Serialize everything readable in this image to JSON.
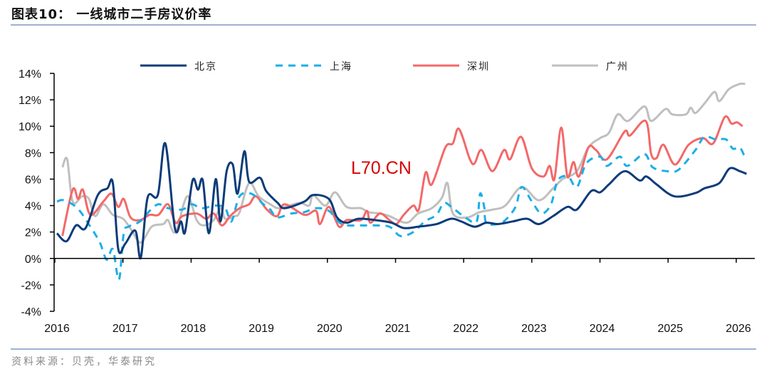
{
  "title": "图表10：  一线城市二手房议价率",
  "source": "资料来源：贝壳，华泰研究",
  "watermark": "L70.CN",
  "chart_data": {
    "type": "line",
    "title": "一线城市二手房议价率",
    "xlabel": "",
    "ylabel": "",
    "xlim": [
      2016,
      2026
    ],
    "ylim": [
      -4,
      14
    ],
    "x_tick_labels": [
      "2016",
      "2017",
      "2018",
      "2019",
      "2020",
      "2021",
      "2022",
      "2023",
      "2024",
      "2025",
      "2026"
    ],
    "x_ticks": [
      2016,
      2017,
      2018,
      2019,
      2020,
      2021,
      2022,
      2023,
      2024,
      2025,
      2026
    ],
    "y_ticks": [
      14,
      12,
      10,
      8,
      6,
      4,
      2,
      0,
      -2,
      -4
    ],
    "y_tick_labels": [
      "14%",
      "12%",
      "10%",
      "8%",
      "6%",
      "4%",
      "2%",
      "0%",
      "-2%",
      "-4%"
    ],
    "grid": false,
    "legend_position": "top",
    "series": [
      {
        "name": "北京",
        "color": "#0d3b7a",
        "dash": false,
        "points": [
          [
            2016.0,
            1.9
          ],
          [
            2016.14,
            1.3
          ],
          [
            2016.28,
            2.5
          ],
          [
            2016.42,
            2.3
          ],
          [
            2016.6,
            4.8
          ],
          [
            2016.74,
            5.3
          ],
          [
            2016.82,
            5.7
          ],
          [
            2016.9,
            0.7
          ],
          [
            2017.0,
            1.1
          ],
          [
            2017.15,
            2.1
          ],
          [
            2017.23,
            0.05
          ],
          [
            2017.33,
            4.6
          ],
          [
            2017.48,
            4.8
          ],
          [
            2017.59,
            8.7
          ],
          [
            2017.73,
            2.3
          ],
          [
            2017.82,
            2.8
          ],
          [
            2017.88,
            2.0
          ],
          [
            2017.99,
            5.9
          ],
          [
            2018.07,
            5.2
          ],
          [
            2018.14,
            5.9
          ],
          [
            2018.23,
            1.9
          ],
          [
            2018.33,
            6.0
          ],
          [
            2018.4,
            2.8
          ],
          [
            2018.49,
            6.6
          ],
          [
            2018.58,
            7.1
          ],
          [
            2018.65,
            4.9
          ],
          [
            2018.75,
            8.1
          ],
          [
            2018.82,
            5.8
          ],
          [
            2018.98,
            6.1
          ],
          [
            2019.07,
            5.1
          ],
          [
            2019.24,
            4.2
          ],
          [
            2019.34,
            3.8
          ],
          [
            2019.63,
            4.3
          ],
          [
            2019.76,
            4.8
          ],
          [
            2019.99,
            4.5
          ],
          [
            2020.11,
            3.1
          ],
          [
            2020.25,
            2.7
          ],
          [
            2020.42,
            3.0
          ],
          [
            2020.67,
            2.9
          ],
          [
            2020.91,
            2.7
          ],
          [
            2021.09,
            2.3
          ],
          [
            2021.3,
            2.4
          ],
          [
            2021.57,
            2.6
          ],
          [
            2021.78,
            3.0
          ],
          [
            2021.93,
            2.8
          ],
          [
            2022.13,
            2.4
          ],
          [
            2022.3,
            2.7
          ],
          [
            2022.47,
            2.6
          ],
          [
            2022.69,
            2.8
          ],
          [
            2022.9,
            3.0
          ],
          [
            2023.07,
            2.6
          ],
          [
            2023.28,
            3.2
          ],
          [
            2023.49,
            3.9
          ],
          [
            2023.63,
            3.7
          ],
          [
            2023.84,
            5.1
          ],
          [
            2023.97,
            5.0
          ],
          [
            2024.1,
            5.6
          ],
          [
            2024.33,
            6.6
          ],
          [
            2024.55,
            5.9
          ],
          [
            2024.65,
            6.2
          ],
          [
            2024.8,
            5.6
          ],
          [
            2025.06,
            4.7
          ],
          [
            2025.37,
            4.95
          ],
          [
            2025.5,
            5.3
          ],
          [
            2025.72,
            5.7
          ],
          [
            2025.87,
            6.8
          ],
          [
            2026.02,
            6.6
          ],
          [
            2026.12,
            6.4
          ]
        ]
      },
      {
        "name": "上海",
        "color": "#1aaee8",
        "dash": true,
        "points": [
          [
            2016.0,
            4.3
          ],
          [
            2016.1,
            4.4
          ],
          [
            2016.3,
            3.8
          ],
          [
            2016.49,
            2.4
          ],
          [
            2016.63,
            1.2
          ],
          [
            2016.73,
            -0.1
          ],
          [
            2016.82,
            0.7
          ],
          [
            2016.91,
            -1.6
          ],
          [
            2016.98,
            1.9
          ],
          [
            2017.05,
            2.4
          ],
          [
            2017.22,
            2.8
          ],
          [
            2017.36,
            3.6
          ],
          [
            2017.49,
            4.1
          ],
          [
            2017.63,
            3.8
          ],
          [
            2017.84,
            3.7
          ],
          [
            2017.98,
            4.1
          ],
          [
            2018.12,
            3.8
          ],
          [
            2018.33,
            4.0
          ],
          [
            2018.47,
            3.8
          ],
          [
            2018.56,
            2.8
          ],
          [
            2018.68,
            4.7
          ],
          [
            2018.85,
            4.9
          ],
          [
            2019.03,
            4.1
          ],
          [
            2019.13,
            3.7
          ],
          [
            2019.23,
            3.1
          ],
          [
            2019.44,
            3.4
          ],
          [
            2019.63,
            3.5
          ],
          [
            2019.8,
            3.8
          ],
          [
            2019.99,
            3.6
          ],
          [
            2020.18,
            2.6
          ],
          [
            2020.46,
            2.5
          ],
          [
            2020.67,
            2.5
          ],
          [
            2020.88,
            2.4
          ],
          [
            2021.04,
            1.7
          ],
          [
            2021.23,
            2.0
          ],
          [
            2021.4,
            2.8
          ],
          [
            2021.57,
            3.3
          ],
          [
            2021.68,
            4.2
          ],
          [
            2021.81,
            3.8
          ],
          [
            2022.02,
            3.0
          ],
          [
            2022.16,
            2.8
          ],
          [
            2022.21,
            4.9
          ],
          [
            2022.27,
            3.9
          ],
          [
            2022.3,
            2.7
          ],
          [
            2022.47,
            2.6
          ],
          [
            2022.58,
            2.9
          ],
          [
            2022.73,
            3.9
          ],
          [
            2022.82,
            5.4
          ],
          [
            2022.97,
            4.3
          ],
          [
            2023.11,
            3.4
          ],
          [
            2023.25,
            4.1
          ],
          [
            2023.35,
            5.9
          ],
          [
            2023.5,
            6.2
          ],
          [
            2023.63,
            5.4
          ],
          [
            2023.77,
            7.2
          ],
          [
            2023.97,
            7.7
          ],
          [
            2024.07,
            7.0
          ],
          [
            2024.26,
            7.7
          ],
          [
            2024.37,
            7.0
          ],
          [
            2024.62,
            7.9
          ],
          [
            2024.74,
            6.9
          ],
          [
            2024.95,
            6.6
          ],
          [
            2025.12,
            6.7
          ],
          [
            2025.37,
            8.2
          ],
          [
            2025.5,
            9.2
          ],
          [
            2025.67,
            9.0
          ],
          [
            2025.82,
            9.0
          ],
          [
            2025.92,
            8.3
          ],
          [
            2026.02,
            8.4
          ],
          [
            2026.1,
            7.6
          ]
        ]
      },
      {
        "name": "深圳",
        "color": "#f46868",
        "dash": false,
        "points": [
          [
            2016.08,
            1.7
          ],
          [
            2016.23,
            5.2
          ],
          [
            2016.31,
            4.5
          ],
          [
            2016.38,
            5.2
          ],
          [
            2016.49,
            3.3
          ],
          [
            2016.68,
            4.3
          ],
          [
            2016.8,
            4.9
          ],
          [
            2016.9,
            3.9
          ],
          [
            2016.98,
            4.5
          ],
          [
            2017.08,
            3.1
          ],
          [
            2017.22,
            2.9
          ],
          [
            2017.36,
            3.3
          ],
          [
            2017.49,
            3.3
          ],
          [
            2017.63,
            4.1
          ],
          [
            2017.74,
            2.7
          ],
          [
            2017.84,
            3.2
          ],
          [
            2018.05,
            3.4
          ],
          [
            2018.19,
            3.0
          ],
          [
            2018.3,
            3.4
          ],
          [
            2018.42,
            2.5
          ],
          [
            2018.54,
            3.2
          ],
          [
            2018.68,
            3.8
          ],
          [
            2018.82,
            4.1
          ],
          [
            2018.92,
            4.7
          ],
          [
            2019.08,
            3.7
          ],
          [
            2019.23,
            3.2
          ],
          [
            2019.34,
            4.1
          ],
          [
            2019.63,
            3.3
          ],
          [
            2019.8,
            3.6
          ],
          [
            2019.86,
            2.6
          ],
          [
            2019.99,
            3.9
          ],
          [
            2020.14,
            2.4
          ],
          [
            2020.25,
            2.9
          ],
          [
            2020.46,
            2.9
          ],
          [
            2020.55,
            3.6
          ],
          [
            2020.6,
            2.7
          ],
          [
            2020.74,
            3.4
          ],
          [
            2020.88,
            2.9
          ],
          [
            2020.98,
            2.6
          ],
          [
            2021.09,
            3.3
          ],
          [
            2021.23,
            4.0
          ],
          [
            2021.31,
            3.7
          ],
          [
            2021.41,
            6.5
          ],
          [
            2021.5,
            5.6
          ],
          [
            2021.7,
            8.4
          ],
          [
            2021.81,
            8.7
          ],
          [
            2021.9,
            9.8
          ],
          [
            2022.06,
            7.5
          ],
          [
            2022.13,
            7.2
          ],
          [
            2022.23,
            8.2
          ],
          [
            2022.39,
            6.6
          ],
          [
            2022.56,
            8.2
          ],
          [
            2022.65,
            7.5
          ],
          [
            2022.81,
            9.2
          ],
          [
            2022.97,
            6.8
          ],
          [
            2023.14,
            6.2
          ],
          [
            2023.23,
            7.0
          ],
          [
            2023.3,
            6.0
          ],
          [
            2023.4,
            9.9
          ],
          [
            2023.49,
            6.2
          ],
          [
            2023.58,
            7.3
          ],
          [
            2023.66,
            6.2
          ],
          [
            2023.8,
            8.4
          ],
          [
            2023.91,
            8.2
          ],
          [
            2024.07,
            7.5
          ],
          [
            2024.33,
            9.6
          ],
          [
            2024.41,
            9.3
          ],
          [
            2024.64,
            10.4
          ],
          [
            2024.72,
            7.9
          ],
          [
            2024.8,
            7.6
          ],
          [
            2024.9,
            8.6
          ],
          [
            2025.07,
            7.1
          ],
          [
            2025.27,
            8.6
          ],
          [
            2025.48,
            9.1
          ],
          [
            2025.63,
            8.7
          ],
          [
            2025.8,
            10.7
          ],
          [
            2025.9,
            10.2
          ],
          [
            2025.98,
            10.3
          ],
          [
            2026.06,
            10.0
          ]
        ]
      },
      {
        "name": "广州",
        "color": "#bfbfbf",
        "dash": false,
        "points": [
          [
            2016.08,
            6.9
          ],
          [
            2016.15,
            7.5
          ],
          [
            2016.23,
            4.3
          ],
          [
            2016.37,
            4.7
          ],
          [
            2016.47,
            4.5
          ],
          [
            2016.56,
            3.2
          ],
          [
            2016.68,
            4.1
          ],
          [
            2016.82,
            3.3
          ],
          [
            2016.97,
            3.0
          ],
          [
            2017.1,
            2.1
          ],
          [
            2017.23,
            1.2
          ],
          [
            2017.39,
            2.4
          ],
          [
            2017.56,
            2.6
          ],
          [
            2017.63,
            2.9
          ],
          [
            2017.74,
            2.0
          ],
          [
            2017.91,
            4.7
          ],
          [
            2018.05,
            2.9
          ],
          [
            2018.16,
            2.5
          ],
          [
            2018.3,
            2.9
          ],
          [
            2018.4,
            3.8
          ],
          [
            2018.47,
            3.0
          ],
          [
            2018.61,
            3.2
          ],
          [
            2018.68,
            3.5
          ],
          [
            2018.82,
            5.7
          ],
          [
            2018.96,
            4.7
          ],
          [
            2019.13,
            4.1
          ],
          [
            2019.27,
            3.8
          ],
          [
            2019.55,
            4.2
          ],
          [
            2019.7,
            4.0
          ],
          [
            2019.76,
            4.8
          ],
          [
            2019.94,
            4.0
          ],
          [
            2020.08,
            5.0
          ],
          [
            2020.25,
            3.9
          ],
          [
            2020.46,
            3.8
          ],
          [
            2020.57,
            3.5
          ],
          [
            2020.74,
            3.4
          ],
          [
            2020.88,
            3.2
          ],
          [
            2021.13,
            2.7
          ],
          [
            2021.3,
            3.4
          ],
          [
            2021.5,
            3.8
          ],
          [
            2021.65,
            4.6
          ],
          [
            2021.73,
            5.7
          ],
          [
            2021.81,
            3.4
          ],
          [
            2022.02,
            3.1
          ],
          [
            2022.2,
            3.5
          ],
          [
            2022.4,
            3.7
          ],
          [
            2022.58,
            4.0
          ],
          [
            2022.82,
            5.4
          ],
          [
            2023.07,
            4.4
          ],
          [
            2023.28,
            5.3
          ],
          [
            2023.42,
            6.0
          ],
          [
            2023.63,
            6.6
          ],
          [
            2023.8,
            8.4
          ],
          [
            2023.97,
            9.1
          ],
          [
            2024.1,
            9.5
          ],
          [
            2024.23,
            10.9
          ],
          [
            2024.38,
            10.4
          ],
          [
            2024.62,
            11.5
          ],
          [
            2024.72,
            10.4
          ],
          [
            2024.93,
            11.3
          ],
          [
            2025.03,
            10.9
          ],
          [
            2025.23,
            10.9
          ],
          [
            2025.3,
            11.4
          ],
          [
            2025.37,
            11.0
          ],
          [
            2025.5,
            11.7
          ],
          [
            2025.65,
            12.6
          ],
          [
            2025.72,
            11.9
          ],
          [
            2025.86,
            12.8
          ],
          [
            2026.02,
            13.2
          ],
          [
            2026.1,
            13.2
          ]
        ]
      }
    ]
  }
}
